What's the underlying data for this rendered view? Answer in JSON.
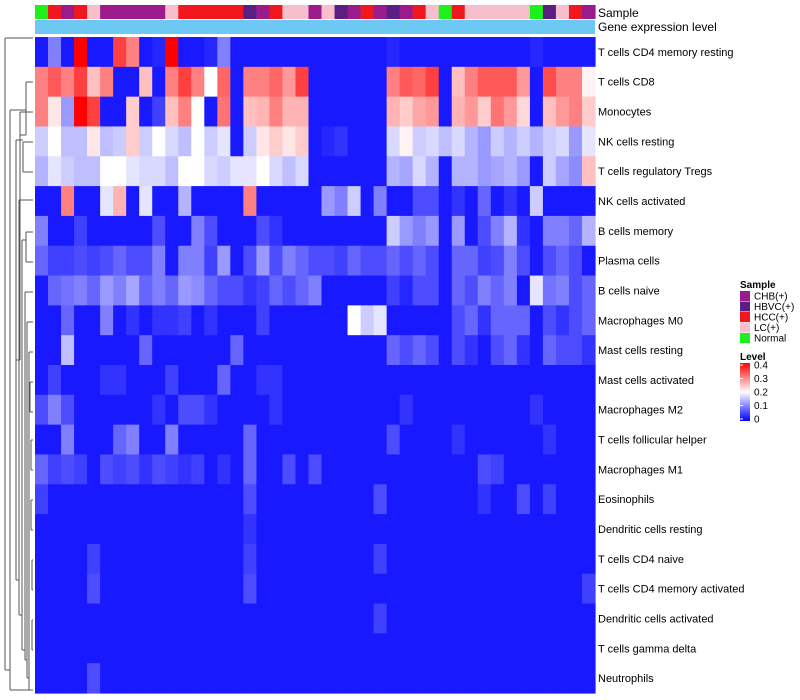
{
  "chart_data": {
    "type": "heatmap",
    "title": "",
    "annotation_titles": {
      "top": "Sample",
      "bottom": "Gene expression level"
    },
    "annotation_bar_color": "#6EC8F4",
    "sample_groups": [
      "CHB(+)",
      "HBVC(+)",
      "HCC(+)",
      "LC(+)",
      "Normal"
    ],
    "sample_group_colors": {
      "CHB(+)": "#9B1B8C",
      "HBVC(+)": "#5A1E84",
      "HCC(+)": "#F0181E",
      "LC(+)": "#F6BFCB",
      "Normal": "#1EF01E"
    },
    "columns": [
      "Normal",
      "HCC(+)",
      "CHB(+)",
      "HCC(+)",
      "LC(+)",
      "CHB(+)",
      "CHB(+)",
      "CHB(+)",
      "CHB(+)",
      "CHB(+)",
      "LC(+)",
      "HCC(+)",
      "HCC(+)",
      "HCC(+)",
      "HCC(+)",
      "HCC(+)",
      "HBVC(+)",
      "CHB(+)",
      "HCC(+)",
      "LC(+)",
      "LC(+)",
      "CHB(+)",
      "LC(+)",
      "HBVC(+)",
      "CHB(+)",
      "HCC(+)",
      "CHB(+)",
      "HBVC(+)",
      "CHB(+)",
      "HCC(+)",
      "LC(+)",
      "Normal",
      "HCC(+)",
      "LC(+)",
      "LC(+)",
      "LC(+)",
      "LC(+)",
      "LC(+)",
      "Normal",
      "HBVC(+)",
      "LC(+)",
      "HCC(+)",
      "CHB(+)"
    ],
    "rows": [
      "T cells CD4 memory resting",
      "T cells CD8",
      "Monocytes",
      "NK cells resting",
      "T cells regulatory  Tregs",
      "NK cells activated",
      "B cells memory",
      "Plasma cells",
      "B cells naive",
      "Macrophages M0",
      "Mast cells resting",
      "Mast cells activated",
      "Macrophages M2",
      "T cells follicular helper",
      "Macrophages M1",
      "Eosinophils",
      "Dendritic cells resting",
      "T cells CD4 naive",
      "T cells CD4 memory activated",
      "Dendritic cells activated",
      "T cells gamma delta",
      "Neutrophils"
    ],
    "values": [
      [
        0.02,
        0.1,
        0.02,
        0.4,
        0.02,
        0.02,
        0.35,
        0.3,
        0.02,
        0.03,
        0.4,
        0.02,
        0.02,
        0.03,
        0.1,
        0.02,
        0.02,
        0.02,
        0.02,
        0.02,
        0.02,
        0.02,
        0.02,
        0.02,
        0.02,
        0.02,
        0.02,
        0.03,
        0.02,
        0.02,
        0.02,
        0.02,
        0.02,
        0.02,
        0.02,
        0.02,
        0.02,
        0.02,
        0.03,
        0.02,
        0.02,
        0.02,
        0.02
      ],
      [
        0.3,
        0.33,
        0.3,
        0.35,
        0.25,
        0.3,
        0.02,
        0.02,
        0.25,
        0.02,
        0.3,
        0.35,
        0.3,
        0.2,
        0.32,
        0.02,
        0.3,
        0.3,
        0.32,
        0.28,
        0.35,
        0.02,
        0.02,
        0.02,
        0.02,
        0.02,
        0.02,
        0.3,
        0.33,
        0.32,
        0.35,
        0.02,
        0.25,
        0.3,
        0.33,
        0.33,
        0.33,
        0.28,
        0.02,
        0.34,
        0.3,
        0.3,
        0.21
      ],
      [
        0.3,
        0.22,
        0.12,
        0.4,
        0.35,
        0.02,
        0.02,
        0.24,
        0.02,
        0.05,
        0.25,
        0.3,
        0.2,
        0.02,
        0.31,
        0.02,
        0.25,
        0.26,
        0.3,
        0.26,
        0.26,
        0.02,
        0.02,
        0.02,
        0.02,
        0.02,
        0.02,
        0.26,
        0.24,
        0.27,
        0.28,
        0.02,
        0.26,
        0.28,
        0.24,
        0.31,
        0.28,
        0.23,
        0.02,
        0.25,
        0.28,
        0.3,
        0.24
      ],
      [
        0.16,
        0.2,
        0.15,
        0.15,
        0.22,
        0.15,
        0.16,
        0.24,
        0.16,
        0.2,
        0.17,
        0.15,
        0.2,
        0.16,
        0.18,
        0.02,
        0.16,
        0.22,
        0.24,
        0.22,
        0.24,
        0.02,
        0.03,
        0.04,
        0.02,
        0.02,
        0.02,
        0.17,
        0.21,
        0.16,
        0.17,
        0.15,
        0.17,
        0.14,
        0.12,
        0.16,
        0.14,
        0.16,
        0.14,
        0.16,
        0.17,
        0.12,
        0.18
      ],
      [
        0.14,
        0.18,
        0.16,
        0.15,
        0.15,
        0.2,
        0.2,
        0.18,
        0.17,
        0.17,
        0.15,
        0.2,
        0.2,
        0.17,
        0.16,
        0.18,
        0.18,
        0.2,
        0.17,
        0.15,
        0.17,
        0.02,
        0.02,
        0.02,
        0.02,
        0.02,
        0.02,
        0.14,
        0.13,
        0.17,
        0.14,
        0.02,
        0.14,
        0.14,
        0.12,
        0.13,
        0.14,
        0.12,
        0.02,
        0.16,
        0.13,
        0.11,
        0.25
      ],
      [
        0.02,
        0.02,
        0.3,
        0.02,
        0.02,
        0.18,
        0.26,
        0.02,
        0.18,
        0.02,
        0.02,
        0.14,
        0.02,
        0.02,
        0.02,
        0.02,
        0.3,
        0.02,
        0.02,
        0.02,
        0.02,
        0.02,
        0.12,
        0.1,
        0.16,
        0.02,
        0.1,
        0.02,
        0.02,
        0.06,
        0.06,
        0.02,
        0.04,
        0.02,
        0.08,
        0.02,
        0.04,
        0.02,
        0.16,
        0.02,
        0.02,
        0.02,
        0.02
      ],
      [
        0.1,
        0.02,
        0.02,
        0.05,
        0.02,
        0.02,
        0.02,
        0.02,
        0.02,
        0.06,
        0.02,
        0.02,
        0.1,
        0.06,
        0.02,
        0.02,
        0.02,
        0.06,
        0.04,
        0.02,
        0.02,
        0.02,
        0.02,
        0.02,
        0.02,
        0.02,
        0.02,
        0.16,
        0.12,
        0.1,
        0.12,
        0.02,
        0.12,
        0.02,
        0.06,
        0.1,
        0.14,
        0.04,
        0.02,
        0.1,
        0.1,
        0.08,
        0.14
      ],
      [
        0.08,
        0.05,
        0.05,
        0.06,
        0.05,
        0.06,
        0.08,
        0.06,
        0.06,
        0.1,
        0.02,
        0.1,
        0.1,
        0.05,
        0.12,
        0.02,
        0.06,
        0.12,
        0.06,
        0.1,
        0.08,
        0.06,
        0.06,
        0.05,
        0.08,
        0.06,
        0.06,
        0.08,
        0.06,
        0.08,
        0.06,
        0.02,
        0.08,
        0.08,
        0.05,
        0.06,
        0.1,
        0.06,
        0.02,
        0.06,
        0.08,
        0.06,
        0.02
      ],
      [
        0.02,
        0.08,
        0.09,
        0.1,
        0.08,
        0.12,
        0.1,
        0.13,
        0.08,
        0.1,
        0.08,
        0.12,
        0.11,
        0.08,
        0.06,
        0.06,
        0.04,
        0.05,
        0.08,
        0.06,
        0.08,
        0.1,
        0.02,
        0.02,
        0.02,
        0.02,
        0.02,
        0.05,
        0.03,
        0.06,
        0.06,
        0.02,
        0.08,
        0.06,
        0.1,
        0.08,
        0.1,
        0.02,
        0.18,
        0.09,
        0.1,
        0.06,
        0.08
      ],
      [
        0.02,
        0.02,
        0.08,
        0.02,
        0.02,
        0.1,
        0.02,
        0.04,
        0.02,
        0.04,
        0.04,
        0.05,
        0.02,
        0.04,
        0.02,
        0.02,
        0.02,
        0.05,
        0.02,
        0.02,
        0.02,
        0.02,
        0.02,
        0.02,
        0.2,
        0.16,
        0.18,
        0.02,
        0.02,
        0.02,
        0.02,
        0.02,
        0.06,
        0.08,
        0.04,
        0.08,
        0.08,
        0.08,
        0.02,
        0.06,
        0.04,
        0.06,
        0.08
      ],
      [
        0.02,
        0.02,
        0.15,
        0.02,
        0.02,
        0.02,
        0.02,
        0.02,
        0.08,
        0.02,
        0.02,
        0.02,
        0.02,
        0.02,
        0.02,
        0.08,
        0.02,
        0.02,
        0.02,
        0.02,
        0.02,
        0.02,
        0.02,
        0.02,
        0.02,
        0.02,
        0.02,
        0.08,
        0.06,
        0.08,
        0.06,
        0.02,
        0.06,
        0.04,
        0.02,
        0.06,
        0.08,
        0.04,
        0.02,
        0.08,
        0.06,
        0.06,
        0.04
      ],
      [
        0.02,
        0.05,
        0.02,
        0.02,
        0.02,
        0.04,
        0.04,
        0.02,
        0.02,
        0.02,
        0.05,
        0.02,
        0.02,
        0.02,
        0.08,
        0.02,
        0.02,
        0.04,
        0.04,
        0.02,
        0.02,
        0.02,
        0.02,
        0.02,
        0.02,
        0.02,
        0.02,
        0.02,
        0.02,
        0.02,
        0.02,
        0.02,
        0.02,
        0.02,
        0.02,
        0.02,
        0.02,
        0.02,
        0.02,
        0.02,
        0.02,
        0.02,
        0.02
      ],
      [
        0.06,
        0.1,
        0.06,
        0.02,
        0.02,
        0.02,
        0.02,
        0.02,
        0.02,
        0.04,
        0.02,
        0.06,
        0.06,
        0.04,
        0.02,
        0.02,
        0.02,
        0.02,
        0.04,
        0.02,
        0.02,
        0.02,
        0.02,
        0.02,
        0.02,
        0.02,
        0.02,
        0.02,
        0.04,
        0.02,
        0.02,
        0.02,
        0.02,
        0.02,
        0.02,
        0.02,
        0.02,
        0.02,
        0.04,
        0.02,
        0.02,
        0.02,
        0.02
      ],
      [
        0.02,
        0.02,
        0.1,
        0.02,
        0.02,
        0.02,
        0.08,
        0.1,
        0.02,
        0.02,
        0.1,
        0.02,
        0.02,
        0.02,
        0.02,
        0.02,
        0.08,
        0.02,
        0.02,
        0.02,
        0.02,
        0.02,
        0.02,
        0.02,
        0.02,
        0.02,
        0.02,
        0.06,
        0.02,
        0.02,
        0.02,
        0.02,
        0.04,
        0.02,
        0.02,
        0.02,
        0.02,
        0.02,
        0.02,
        0.04,
        0.02,
        0.02,
        0.02
      ],
      [
        0.08,
        0.05,
        0.06,
        0.05,
        0.02,
        0.06,
        0.05,
        0.06,
        0.04,
        0.06,
        0.05,
        0.04,
        0.05,
        0.02,
        0.04,
        0.02,
        0.08,
        0.02,
        0.02,
        0.06,
        0.02,
        0.06,
        0.02,
        0.02,
        0.02,
        0.02,
        0.02,
        0.02,
        0.02,
        0.02,
        0.02,
        0.02,
        0.02,
        0.02,
        0.06,
        0.05,
        0.02,
        0.02,
        0.02,
        0.02,
        0.02,
        0.02,
        0.02
      ],
      [
        0.05,
        0.02,
        0.02,
        0.02,
        0.02,
        0.02,
        0.02,
        0.02,
        0.02,
        0.02,
        0.02,
        0.02,
        0.02,
        0.02,
        0.02,
        0.02,
        0.06,
        0.02,
        0.02,
        0.02,
        0.02,
        0.02,
        0.02,
        0.02,
        0.02,
        0.02,
        0.06,
        0.02,
        0.02,
        0.02,
        0.02,
        0.02,
        0.02,
        0.02,
        0.04,
        0.02,
        0.02,
        0.06,
        0.02,
        0.05,
        0.02,
        0.02,
        0.02
      ],
      [
        0.02,
        0.02,
        0.02,
        0.02,
        0.02,
        0.02,
        0.02,
        0.02,
        0.02,
        0.02,
        0.02,
        0.02,
        0.02,
        0.02,
        0.02,
        0.02,
        0.04,
        0.02,
        0.02,
        0.02,
        0.02,
        0.02,
        0.02,
        0.02,
        0.02,
        0.02,
        0.02,
        0.02,
        0.02,
        0.02,
        0.02,
        0.02,
        0.02,
        0.02,
        0.02,
        0.02,
        0.02,
        0.02,
        0.02,
        0.02,
        0.02,
        0.02,
        0.02
      ],
      [
        0.02,
        0.02,
        0.02,
        0.02,
        0.05,
        0.02,
        0.02,
        0.02,
        0.02,
        0.02,
        0.02,
        0.02,
        0.02,
        0.02,
        0.02,
        0.02,
        0.05,
        0.02,
        0.02,
        0.02,
        0.02,
        0.02,
        0.02,
        0.02,
        0.02,
        0.02,
        0.05,
        0.02,
        0.02,
        0.02,
        0.02,
        0.02,
        0.02,
        0.02,
        0.02,
        0.02,
        0.02,
        0.02,
        0.02,
        0.02,
        0.02,
        0.02,
        0.02
      ],
      [
        0.02,
        0.02,
        0.02,
        0.02,
        0.06,
        0.02,
        0.02,
        0.02,
        0.02,
        0.02,
        0.02,
        0.02,
        0.02,
        0.02,
        0.02,
        0.02,
        0.06,
        0.02,
        0.02,
        0.02,
        0.02,
        0.02,
        0.02,
        0.02,
        0.02,
        0.02,
        0.02,
        0.02,
        0.02,
        0.02,
        0.02,
        0.02,
        0.02,
        0.02,
        0.02,
        0.02,
        0.02,
        0.02,
        0.02,
        0.02,
        0.02,
        0.02,
        0.05
      ],
      [
        0.02,
        0.02,
        0.02,
        0.02,
        0.02,
        0.02,
        0.02,
        0.02,
        0.02,
        0.02,
        0.02,
        0.02,
        0.02,
        0.02,
        0.02,
        0.02,
        0.02,
        0.02,
        0.02,
        0.02,
        0.02,
        0.02,
        0.02,
        0.02,
        0.02,
        0.02,
        0.05,
        0.02,
        0.02,
        0.02,
        0.02,
        0.02,
        0.02,
        0.02,
        0.02,
        0.02,
        0.02,
        0.02,
        0.02,
        0.02,
        0.02,
        0.02,
        0.02
      ],
      [
        0.02,
        0.02,
        0.02,
        0.02,
        0.02,
        0.02,
        0.02,
        0.02,
        0.02,
        0.02,
        0.02,
        0.02,
        0.02,
        0.02,
        0.02,
        0.02,
        0.02,
        0.02,
        0.02,
        0.02,
        0.02,
        0.02,
        0.02,
        0.02,
        0.02,
        0.02,
        0.02,
        0.02,
        0.02,
        0.02,
        0.02,
        0.02,
        0.02,
        0.02,
        0.02,
        0.02,
        0.02,
        0.02,
        0.02,
        0.02,
        0.02,
        0.02,
        0.02
      ],
      [
        0.02,
        0.02,
        0.02,
        0.02,
        0.06,
        0.02,
        0.02,
        0.02,
        0.02,
        0.02,
        0.02,
        0.02,
        0.02,
        0.02,
        0.02,
        0.02,
        0.02,
        0.02,
        0.02,
        0.02,
        0.02,
        0.02,
        0.02,
        0.02,
        0.02,
        0.02,
        0.02,
        0.02,
        0.02,
        0.02,
        0.02,
        0.02,
        0.02,
        0.02,
        0.02,
        0.02,
        0.02,
        0.02,
        0.02,
        0.02,
        0.02,
        0.02,
        0.02
      ]
    ],
    "color_scale": {
      "low": "#0000FF",
      "mid": "#FFFFFF",
      "high": "#FF0000",
      "min": 0,
      "mid_value": 0.2,
      "max": 0.4
    },
    "legend": {
      "sample_title": "Sample",
      "level_title": "Level",
      "level_ticks": [
        "0.4",
        "0.3",
        "0.2",
        "0.1",
        "0"
      ],
      "placement": "right"
    },
    "dendrogram": "rows"
  }
}
